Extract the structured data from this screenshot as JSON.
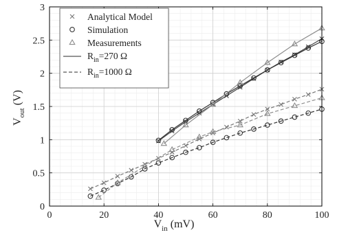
{
  "chart_data": {
    "type": "line",
    "title": "",
    "xlabel": {
      "main": "V",
      "sub": "in",
      "unit": " (mV)"
    },
    "ylabel": {
      "main": "V",
      "sub": "out",
      "unit": " (V)"
    },
    "xlim": [
      0,
      100
    ],
    "ylim": [
      0,
      3
    ],
    "xticks": [
      0,
      20,
      40,
      60,
      80,
      100
    ],
    "yticks": [
      0,
      0.5,
      1,
      1.5,
      2,
      2.5,
      3
    ],
    "xtick_labels": [
      "0",
      "20",
      "40",
      "60",
      "80",
      "100"
    ],
    "ytick_labels": [
      "0",
      "0.5",
      "1",
      "1.5",
      "2",
      "2.5",
      "3"
    ],
    "grid": true,
    "minor_grid": true,
    "legend_position": "top-left",
    "legend": {
      "markers": [
        {
          "symbol": "x",
          "label": "Analytical Model"
        },
        {
          "symbol": "o",
          "label": "Simulation"
        },
        {
          "symbol": "triangle",
          "label": "Measurements"
        }
      ],
      "lines": [
        {
          "style": "solid",
          "label_main": "R",
          "label_sub": "in",
          "label_rest": "=270 Ω"
        },
        {
          "style": "dashed",
          "label_main": "R",
          "label_sub": "in",
          "label_rest": "=1000 Ω"
        }
      ]
    },
    "series": [
      {
        "group": "R_in=270 Ω",
        "marker": "x",
        "line": "solid",
        "color": "#444444",
        "x": [
          40,
          45,
          50,
          55,
          60,
          65,
          70,
          75,
          80,
          85,
          90,
          95,
          100
        ],
        "y": [
          0.98,
          1.13,
          1.27,
          1.4,
          1.53,
          1.66,
          1.79,
          1.92,
          2.05,
          2.17,
          2.28,
          2.4,
          2.52
        ]
      },
      {
        "group": "R_in=270 Ω",
        "marker": "o",
        "line": "solid",
        "color": "#333333",
        "x": [
          40,
          45,
          50,
          55,
          60,
          65,
          70,
          75,
          80,
          85,
          90,
          95,
          100
        ],
        "y": [
          0.99,
          1.15,
          1.29,
          1.43,
          1.56,
          1.69,
          1.81,
          1.93,
          2.05,
          2.16,
          2.27,
          2.38,
          2.48
        ]
      },
      {
        "group": "R_in=270 Ω",
        "marker": "triangle",
        "line": "solid",
        "color": "#8c8c8c",
        "x": [
          42,
          50,
          60,
          70,
          80,
          90,
          100
        ],
        "y": [
          0.94,
          1.22,
          1.53,
          1.86,
          2.16,
          2.44,
          2.68
        ]
      },
      {
        "group": "R_in=1000 Ω",
        "marker": "x",
        "line": "dashed",
        "color": "#777777",
        "x": [
          15,
          20,
          25,
          30,
          35,
          40,
          45,
          50,
          55,
          60,
          65,
          70,
          75,
          80,
          85,
          90,
          95,
          100
        ],
        "y": [
          0.26,
          0.35,
          0.45,
          0.54,
          0.63,
          0.72,
          0.81,
          0.91,
          1.01,
          1.1,
          1.19,
          1.28,
          1.38,
          1.46,
          1.53,
          1.61,
          1.68,
          1.76
        ]
      },
      {
        "group": "R_in=1000 Ω",
        "marker": "o",
        "line": "dashed",
        "color": "#333333",
        "x": [
          15,
          20,
          25,
          30,
          35,
          40,
          45,
          50,
          55,
          60,
          65,
          70,
          75,
          80,
          85,
          90,
          95,
          100
        ],
        "y": [
          0.15,
          0.24,
          0.34,
          0.44,
          0.56,
          0.65,
          0.73,
          0.81,
          0.88,
          0.96,
          1.03,
          1.1,
          1.16,
          1.22,
          1.28,
          1.34,
          1.4,
          1.46
        ]
      },
      {
        "group": "R_in=1000 Ω",
        "marker": "triangle",
        "line": "dashed",
        "color": "#8c8c8c",
        "x": [
          18,
          25,
          35,
          45,
          55,
          60,
          70,
          80,
          90,
          100
        ],
        "y": [
          0.13,
          0.35,
          0.6,
          0.85,
          1.04,
          1.12,
          1.22,
          1.39,
          1.51,
          1.63
        ]
      }
    ]
  }
}
